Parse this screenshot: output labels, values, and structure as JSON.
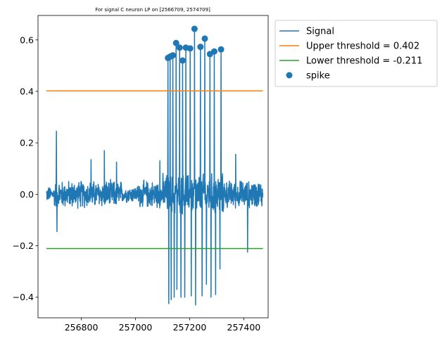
{
  "chart_data": {
    "type": "line",
    "title": "For signal C neuron LP on [2566709, 2574709]",
    "xlabel": "",
    "ylabel": "",
    "xlim": [
      256640,
      257490
    ],
    "ylim": [
      -0.48,
      0.695
    ],
    "x_ticks": [
      256800,
      257000,
      257200,
      257400
    ],
    "x_tick_labels": [
      "256800",
      "257000",
      "257200",
      "257400"
    ],
    "y_ticks": [
      -0.4,
      -0.2,
      0.0,
      0.2,
      0.4,
      0.6
    ],
    "y_tick_labels": [
      "−0.4",
      "−0.2",
      "0.0",
      "0.2",
      "0.4",
      "0.6"
    ],
    "grid": false,
    "legend_position": "outside-right-top",
    "series": [
      {
        "name": "Signal",
        "kind": "line",
        "color": "#1f77b4",
        "x_range": [
          256671,
          257471
        ],
        "noise_amplitude": 0.06,
        "noise_spikes": [
          {
            "x": 256708,
            "y": 0.245
          },
          {
            "x": 256710,
            "y": -0.145
          },
          {
            "x": 256836,
            "y": 0.135
          },
          {
            "x": 256885,
            "y": 0.17
          },
          {
            "x": 256930,
            "y": 0.125
          },
          {
            "x": 257090,
            "y": 0.13
          },
          {
            "x": 257370,
            "y": 0.155
          },
          {
            "x": 257414,
            "y": -0.225
          }
        ],
        "burst_troughs": [
          {
            "x": 257123,
            "y": -0.425
          },
          {
            "x": 257132,
            "y": -0.41
          },
          {
            "x": 257143,
            "y": -0.4
          },
          {
            "x": 257153,
            "y": -0.37
          },
          {
            "x": 257168,
            "y": -0.4
          },
          {
            "x": 257182,
            "y": -0.4
          },
          {
            "x": 257206,
            "y": -0.395
          },
          {
            "x": 257222,
            "y": -0.43
          },
          {
            "x": 257246,
            "y": -0.395
          },
          {
            "x": 257262,
            "y": -0.35
          },
          {
            "x": 257279,
            "y": -0.4
          },
          {
            "x": 257296,
            "y": -0.39
          },
          {
            "x": 257312,
            "y": -0.29
          }
        ]
      },
      {
        "name": "Upper threshold = 0.402",
        "kind": "hline",
        "color": "#ff7f0e",
        "y": 0.402,
        "x_range": [
          256671,
          257471
        ]
      },
      {
        "name": "Lower threshold = -0.211",
        "kind": "hline",
        "color": "#2ca02c",
        "y": -0.211,
        "x_range": [
          256671,
          257471
        ]
      },
      {
        "name": "spike",
        "kind": "scatter",
        "color": "#1f77b4",
        "points": [
          {
            "x": 257120,
            "y": 0.53
          },
          {
            "x": 257128,
            "y": 0.535
          },
          {
            "x": 257138,
            "y": 0.54
          },
          {
            "x": 257150,
            "y": 0.588
          },
          {
            "x": 257163,
            "y": 0.57
          },
          {
            "x": 257174,
            "y": 0.52
          },
          {
            "x": 257186,
            "y": 0.57
          },
          {
            "x": 257202,
            "y": 0.567
          },
          {
            "x": 257218,
            "y": 0.643
          },
          {
            "x": 257240,
            "y": 0.573
          },
          {
            "x": 257256,
            "y": 0.605
          },
          {
            "x": 257275,
            "y": 0.545
          },
          {
            "x": 257291,
            "y": 0.555
          },
          {
            "x": 257316,
            "y": 0.563
          }
        ]
      }
    ]
  }
}
